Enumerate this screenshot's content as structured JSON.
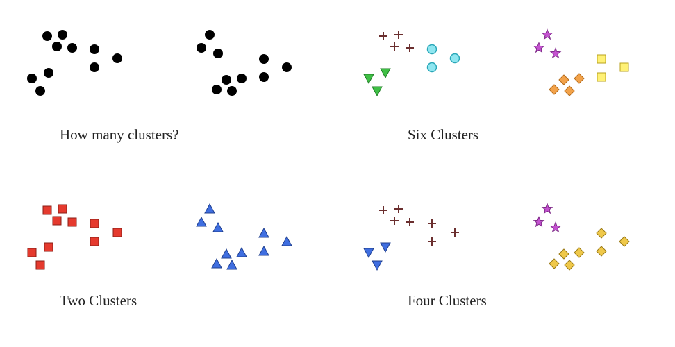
{
  "panels": [
    {
      "caption": "How many clusters?",
      "clusters": [
        {
          "shape": "circle",
          "color": "#000000",
          "stroke": "#000000",
          "points": [
            [
              68,
              52
            ],
            [
              90,
              50
            ],
            [
              82,
              67
            ],
            [
              104,
              69
            ],
            [
              46,
              113
            ],
            [
              70,
              105
            ],
            [
              58,
              131
            ],
            [
              136,
              71
            ],
            [
              136,
              97
            ],
            [
              169,
              84
            ]
          ]
        },
        {
          "shape": "circle",
          "color": "#000000",
          "stroke": "#000000",
          "points": [
            [
              302,
              50
            ],
            [
              290,
              69
            ],
            [
              314,
              77
            ],
            [
              326,
              115
            ],
            [
              348,
              113
            ],
            [
              312,
              129
            ],
            [
              334,
              131
            ],
            [
              380,
              85
            ],
            [
              380,
              111
            ],
            [
              413,
              97
            ]
          ]
        }
      ]
    },
    {
      "caption": "Six Clusters",
      "clusters": [
        {
          "shape": "plus",
          "color": "#6b2f2f",
          "stroke": "#6b2f2f",
          "points": [
            [
              552,
              52
            ],
            [
              574,
              50
            ],
            [
              568,
              67
            ],
            [
              590,
              69
            ]
          ]
        },
        {
          "shape": "circle-outline",
          "color": "#8fe6f0",
          "stroke": "#2aa7b8",
          "points": [
            [
              622,
              71
            ],
            [
              622,
              97
            ],
            [
              655,
              84
            ]
          ]
        },
        {
          "shape": "triangle-down",
          "color": "#3fbf45",
          "stroke": "#1f7d25",
          "points": [
            [
              531,
              113
            ],
            [
              555,
              105
            ],
            [
              543,
              131
            ]
          ]
        },
        {
          "shape": "star",
          "color": "#c452d0",
          "stroke": "#7e2a88",
          "points": [
            [
              788,
              50
            ],
            [
              776,
              69
            ],
            [
              800,
              77
            ]
          ]
        },
        {
          "shape": "diamond",
          "color": "#f2a24a",
          "stroke": "#b46a1a",
          "points": [
            [
              812,
              115
            ],
            [
              834,
              113
            ],
            [
              798,
              129
            ],
            [
              820,
              131
            ]
          ]
        },
        {
          "shape": "square",
          "color": "#fff176",
          "stroke": "#b9a21d",
          "points": [
            [
              866,
              85
            ],
            [
              866,
              111
            ],
            [
              899,
              97
            ]
          ]
        }
      ]
    },
    {
      "caption": "Two Clusters",
      "clusters": [
        {
          "shape": "square",
          "color": "#e53a2e",
          "stroke": "#8a1e16",
          "points": [
            [
              68,
              303
            ],
            [
              90,
              301
            ],
            [
              82,
              318
            ],
            [
              104,
              320
            ],
            [
              46,
              364
            ],
            [
              70,
              356
            ],
            [
              58,
              382
            ],
            [
              136,
              322
            ],
            [
              136,
              348
            ],
            [
              169,
              335
            ]
          ]
        },
        {
          "shape": "triangle-up",
          "color": "#3f6ee0",
          "stroke": "#1f3f8f",
          "points": [
            [
              302,
              301
            ],
            [
              290,
              320
            ],
            [
              314,
              328
            ],
            [
              326,
              366
            ],
            [
              348,
              364
            ],
            [
              312,
              380
            ],
            [
              334,
              382
            ],
            [
              380,
              336
            ],
            [
              380,
              362
            ],
            [
              413,
              348
            ]
          ]
        }
      ]
    },
    {
      "caption": "Four Clusters",
      "clusters": [
        {
          "shape": "plus",
          "color": "#6b2f2f",
          "stroke": "#6b2f2f",
          "points": [
            [
              552,
              303
            ],
            [
              574,
              301
            ],
            [
              568,
              318
            ],
            [
              590,
              320
            ],
            [
              622,
              322
            ],
            [
              622,
              348
            ],
            [
              655,
              335
            ]
          ]
        },
        {
          "shape": "triangle-down",
          "color": "#3f6ee0",
          "stroke": "#1f3f8f",
          "points": [
            [
              531,
              364
            ],
            [
              555,
              356
            ],
            [
              543,
              382
            ]
          ]
        },
        {
          "shape": "star",
          "color": "#c452d0",
          "stroke": "#7e2a88",
          "points": [
            [
              788,
              301
            ],
            [
              776,
              320
            ],
            [
              800,
              328
            ]
          ]
        },
        {
          "shape": "diamond",
          "color": "#efc84a",
          "stroke": "#9a7a16",
          "points": [
            [
              812,
              366
            ],
            [
              834,
              364
            ],
            [
              798,
              380
            ],
            [
              820,
              382
            ],
            [
              866,
              336
            ],
            [
              866,
              362
            ],
            [
              899,
              348
            ]
          ]
        }
      ]
    }
  ]
}
